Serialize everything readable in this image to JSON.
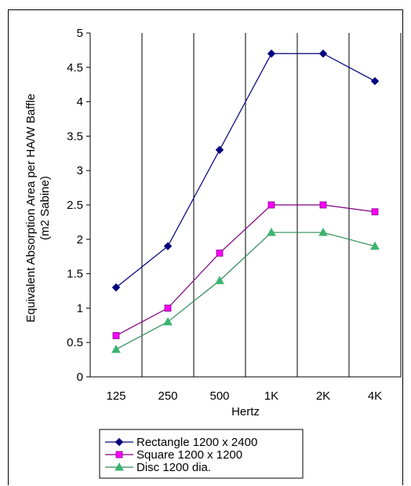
{
  "chart_data": {
    "type": "line",
    "title": "",
    "xlabel": "Hertz",
    "ylabel": [
      "Equivalent Absorption Area per HA/W Baffle",
      "(m2 Sabine)"
    ],
    "categories": [
      "125",
      "250",
      "500",
      "1K",
      "2K",
      "4K"
    ],
    "ylim": [
      0,
      5
    ],
    "yticks": [
      "0",
      "0.5",
      "1",
      "1.5",
      "2",
      "2.5",
      "3",
      "3.5",
      "4",
      "4.5",
      "5"
    ],
    "grid": "vertical",
    "legend_position": "bottom-center",
    "series": [
      {
        "name": "Rectangle 1200 x 2400",
        "color": "#000080",
        "marker": "diamond",
        "values": [
          1.3,
          1.9,
          3.3,
          4.7,
          4.7,
          4.3
        ]
      },
      {
        "name": "Square 1200 x 1200",
        "color": "#800080",
        "marker": "square",
        "marker_color": "#ff00ff",
        "values": [
          0.6,
          1.0,
          1.8,
          2.5,
          2.5,
          2.4
        ]
      },
      {
        "name": "Disc 1200 dia.",
        "color": "#2e8b57",
        "marker": "triangle",
        "marker_color": "#3cb371",
        "values": [
          0.4,
          0.8,
          1.4,
          2.1,
          2.1,
          1.9
        ]
      }
    ]
  }
}
